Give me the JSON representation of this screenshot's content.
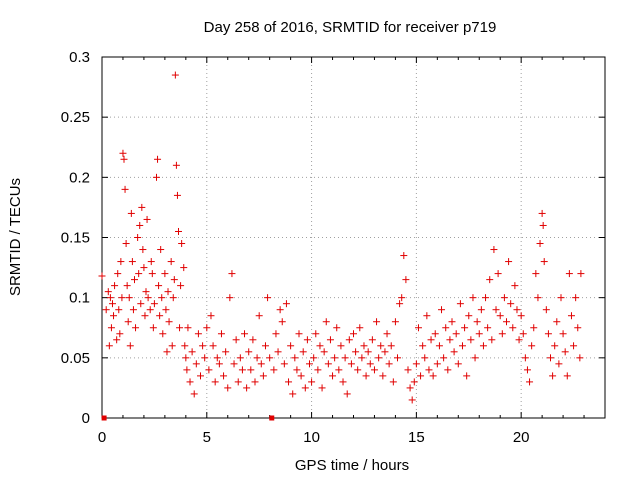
{
  "chart_data": {
    "type": "scatter",
    "title": "Day 258 of 2016, SRMTID for receiver p719",
    "xlabel": "GPS time / hours",
    "ylabel": "SRMTID / TECUs",
    "xlim": [
      0,
      24
    ],
    "ylim": [
      0,
      0.3
    ],
    "xticks": [
      0,
      5,
      10,
      15,
      20
    ],
    "yticks": [
      0,
      0.05,
      0.1,
      0.15,
      0.2,
      0.25,
      0.3
    ],
    "xtick_labels": [
      "0",
      "5",
      "10",
      "15",
      "20"
    ],
    "ytick_labels": [
      "0",
      "0.05",
      "0.1",
      "0.15",
      "0.2",
      "0.25",
      "0.3"
    ],
    "grid": true,
    "marker": "+",
    "color": "#e00000",
    "series": [
      {
        "name": "SRMTID",
        "points": [
          [
            0.0,
            0.118
          ],
          [
            0.1,
            0.0
          ],
          [
            0.2,
            0.09
          ],
          [
            0.3,
            0.105
          ],
          [
            0.35,
            0.06
          ],
          [
            0.4,
            0.1
          ],
          [
            0.45,
            0.075
          ],
          [
            0.5,
            0.095
          ],
          [
            0.55,
            0.085
          ],
          [
            0.6,
            0.11
          ],
          [
            0.7,
            0.065
          ],
          [
            0.75,
            0.12
          ],
          [
            0.8,
            0.09
          ],
          [
            0.85,
            0.07
          ],
          [
            0.9,
            0.13
          ],
          [
            0.95,
            0.1
          ],
          [
            1.0,
            0.22
          ],
          [
            1.05,
            0.215
          ],
          [
            1.1,
            0.19
          ],
          [
            1.15,
            0.145
          ],
          [
            1.2,
            0.11
          ],
          [
            1.25,
            0.08
          ],
          [
            1.3,
            0.1
          ],
          [
            1.35,
            0.06
          ],
          [
            1.4,
            0.17
          ],
          [
            1.45,
            0.13
          ],
          [
            1.5,
            0.09
          ],
          [
            1.55,
            0.115
          ],
          [
            1.6,
            0.075
          ],
          [
            1.7,
            0.15
          ],
          [
            1.75,
            0.12
          ],
          [
            1.8,
            0.16
          ],
          [
            1.85,
            0.095
          ],
          [
            1.9,
            0.175
          ],
          [
            1.95,
            0.14
          ],
          [
            2.0,
            0.125
          ],
          [
            2.05,
            0.085
          ],
          [
            2.1,
            0.105
          ],
          [
            2.15,
            0.165
          ],
          [
            2.2,
            0.1
          ],
          [
            2.3,
            0.09
          ],
          [
            2.35,
            0.13
          ],
          [
            2.4,
            0.12
          ],
          [
            2.45,
            0.075
          ],
          [
            2.5,
            0.095
          ],
          [
            2.6,
            0.2
          ],
          [
            2.65,
            0.215
          ],
          [
            2.7,
            0.11
          ],
          [
            2.75,
            0.085
          ],
          [
            2.8,
            0.14
          ],
          [
            2.85,
            0.1
          ],
          [
            2.9,
            0.07
          ],
          [
            3.0,
            0.12
          ],
          [
            3.05,
            0.09
          ],
          [
            3.1,
            0.055
          ],
          [
            3.15,
            0.105
          ],
          [
            3.2,
            0.08
          ],
          [
            3.3,
            0.13
          ],
          [
            3.35,
            0.06
          ],
          [
            3.4,
            0.1
          ],
          [
            3.45,
            0.115
          ],
          [
            3.5,
            0.285
          ],
          [
            3.55,
            0.21
          ],
          [
            3.6,
            0.185
          ],
          [
            3.65,
            0.155
          ],
          [
            3.7,
            0.075
          ],
          [
            3.75,
            0.11
          ],
          [
            3.8,
            0.145
          ],
          [
            3.9,
            0.125
          ],
          [
            3.95,
            0.06
          ],
          [
            4.0,
            0.05
          ],
          [
            4.05,
            0.04
          ],
          [
            4.1,
            0.075
          ],
          [
            4.2,
            0.03
          ],
          [
            4.3,
            0.055
          ],
          [
            4.4,
            0.02
          ],
          [
            4.5,
            0.045
          ],
          [
            4.6,
            0.07
          ],
          [
            4.7,
            0.035
          ],
          [
            4.8,
            0.06
          ],
          [
            4.9,
            0.05
          ],
          [
            5.0,
            0.075
          ],
          [
            5.1,
            0.04
          ],
          [
            5.2,
            0.085
          ],
          [
            5.3,
            0.06
          ],
          [
            5.4,
            0.03
          ],
          [
            5.5,
            0.05
          ],
          [
            5.6,
            0.045
          ],
          [
            5.7,
            0.07
          ],
          [
            5.8,
            0.035
          ],
          [
            5.9,
            0.055
          ],
          [
            6.0,
            0.025
          ],
          [
            6.1,
            0.1
          ],
          [
            6.2,
            0.12
          ],
          [
            6.3,
            0.045
          ],
          [
            6.4,
            0.065
          ],
          [
            6.5,
            0.03
          ],
          [
            6.6,
            0.05
          ],
          [
            6.7,
            0.04
          ],
          [
            6.8,
            0.07
          ],
          [
            6.9,
            0.025
          ],
          [
            7.0,
            0.055
          ],
          [
            7.1,
            0.04
          ],
          [
            7.2,
            0.065
          ],
          [
            7.3,
            0.03
          ],
          [
            7.4,
            0.05
          ],
          [
            7.5,
            0.085
          ],
          [
            7.6,
            0.045
          ],
          [
            7.7,
            0.035
          ],
          [
            7.8,
            0.06
          ],
          [
            7.9,
            0.1
          ],
          [
            8.0,
            0.05
          ],
          [
            8.1,
            0.0
          ],
          [
            8.2,
            0.04
          ],
          [
            8.3,
            0.07
          ],
          [
            8.4,
            0.055
          ],
          [
            8.5,
            0.09
          ],
          [
            8.6,
            0.08
          ],
          [
            8.7,
            0.045
          ],
          [
            8.8,
            0.095
          ],
          [
            8.9,
            0.03
          ],
          [
            9.0,
            0.06
          ],
          [
            9.1,
            0.02
          ],
          [
            9.2,
            0.05
          ],
          [
            9.3,
            0.04
          ],
          [
            9.4,
            0.07
          ],
          [
            9.5,
            0.035
          ],
          [
            9.6,
            0.055
          ],
          [
            9.7,
            0.025
          ],
          [
            9.8,
            0.065
          ],
          [
            9.9,
            0.045
          ],
          [
            10.0,
            0.03
          ],
          [
            10.1,
            0.05
          ],
          [
            10.2,
            0.07
          ],
          [
            10.3,
            0.04
          ],
          [
            10.4,
            0.06
          ],
          [
            10.5,
            0.025
          ],
          [
            10.6,
            0.055
          ],
          [
            10.7,
            0.08
          ],
          [
            10.8,
            0.045
          ],
          [
            10.9,
            0.065
          ],
          [
            11.0,
            0.035
          ],
          [
            11.1,
            0.05
          ],
          [
            11.2,
            0.075
          ],
          [
            11.3,
            0.04
          ],
          [
            11.4,
            0.06
          ],
          [
            11.5,
            0.03
          ],
          [
            11.6,
            0.05
          ],
          [
            11.7,
            0.02
          ],
          [
            11.8,
            0.065
          ],
          [
            11.9,
            0.045
          ],
          [
            12.0,
            0.07
          ],
          [
            12.1,
            0.055
          ],
          [
            12.2,
            0.04
          ],
          [
            12.3,
            0.075
          ],
          [
            12.4,
            0.05
          ],
          [
            12.5,
            0.06
          ],
          [
            12.6,
            0.035
          ],
          [
            12.7,
            0.055
          ],
          [
            12.8,
            0.045
          ],
          [
            12.9,
            0.065
          ],
          [
            13.0,
            0.04
          ],
          [
            13.1,
            0.08
          ],
          [
            13.2,
            0.05
          ],
          [
            13.3,
            0.06
          ],
          [
            13.4,
            0.035
          ],
          [
            13.5,
            0.055
          ],
          [
            13.6,
            0.07
          ],
          [
            13.7,
            0.045
          ],
          [
            13.8,
            0.06
          ],
          [
            13.9,
            0.03
          ],
          [
            14.0,
            0.08
          ],
          [
            14.1,
            0.05
          ],
          [
            14.2,
            0.095
          ],
          [
            14.3,
            0.1
          ],
          [
            14.4,
            0.135
          ],
          [
            14.5,
            0.115
          ],
          [
            14.6,
            0.04
          ],
          [
            14.7,
            0.025
          ],
          [
            14.8,
            0.015
          ],
          [
            14.9,
            0.03
          ],
          [
            15.0,
            0.045
          ],
          [
            15.1,
            0.075
          ],
          [
            15.2,
            0.035
          ],
          [
            15.3,
            0.06
          ],
          [
            15.4,
            0.05
          ],
          [
            15.5,
            0.085
          ],
          [
            15.6,
            0.04
          ],
          [
            15.7,
            0.065
          ],
          [
            15.8,
            0.035
          ],
          [
            15.9,
            0.07
          ],
          [
            16.0,
            0.045
          ],
          [
            16.1,
            0.06
          ],
          [
            16.2,
            0.09
          ],
          [
            16.3,
            0.05
          ],
          [
            16.4,
            0.075
          ],
          [
            16.5,
            0.04
          ],
          [
            16.6,
            0.065
          ],
          [
            16.7,
            0.08
          ],
          [
            16.8,
            0.055
          ],
          [
            16.9,
            0.07
          ],
          [
            17.0,
            0.045
          ],
          [
            17.1,
            0.095
          ],
          [
            17.2,
            0.06
          ],
          [
            17.3,
            0.075
          ],
          [
            17.4,
            0.035
          ],
          [
            17.5,
            0.085
          ],
          [
            17.6,
            0.065
          ],
          [
            17.7,
            0.1
          ],
          [
            17.8,
            0.05
          ],
          [
            17.9,
            0.08
          ],
          [
            18.0,
            0.07
          ],
          [
            18.1,
            0.09
          ],
          [
            18.2,
            0.06
          ],
          [
            18.3,
            0.1
          ],
          [
            18.4,
            0.075
          ],
          [
            18.5,
            0.115
          ],
          [
            18.6,
            0.065
          ],
          [
            18.7,
            0.14
          ],
          [
            18.8,
            0.09
          ],
          [
            18.9,
            0.12
          ],
          [
            19.0,
            0.085
          ],
          [
            19.1,
            0.07
          ],
          [
            19.2,
            0.1
          ],
          [
            19.3,
            0.08
          ],
          [
            19.4,
            0.13
          ],
          [
            19.5,
            0.095
          ],
          [
            19.6,
            0.075
          ],
          [
            19.7,
            0.11
          ],
          [
            19.8,
            0.09
          ],
          [
            19.9,
            0.065
          ],
          [
            20.0,
            0.085
          ],
          [
            20.1,
            0.07
          ],
          [
            20.2,
            0.05
          ],
          [
            20.3,
            0.04
          ],
          [
            20.4,
            0.03
          ],
          [
            20.5,
            0.06
          ],
          [
            20.6,
            0.075
          ],
          [
            20.7,
            0.12
          ],
          [
            20.8,
            0.1
          ],
          [
            20.9,
            0.145
          ],
          [
            21.0,
            0.17
          ],
          [
            21.05,
            0.16
          ],
          [
            21.1,
            0.13
          ],
          [
            21.2,
            0.09
          ],
          [
            21.3,
            0.07
          ],
          [
            21.4,
            0.05
          ],
          [
            21.5,
            0.035
          ],
          [
            21.6,
            0.06
          ],
          [
            21.7,
            0.08
          ],
          [
            21.8,
            0.045
          ],
          [
            21.9,
            0.1
          ],
          [
            22.0,
            0.07
          ],
          [
            22.1,
            0.055
          ],
          [
            22.2,
            0.035
          ],
          [
            22.3,
            0.12
          ],
          [
            22.4,
            0.085
          ],
          [
            22.5,
            0.06
          ],
          [
            22.6,
            0.1
          ],
          [
            22.7,
            0.075
          ],
          [
            22.8,
            0.05
          ],
          [
            22.85,
            0.12
          ]
        ]
      }
    ]
  }
}
